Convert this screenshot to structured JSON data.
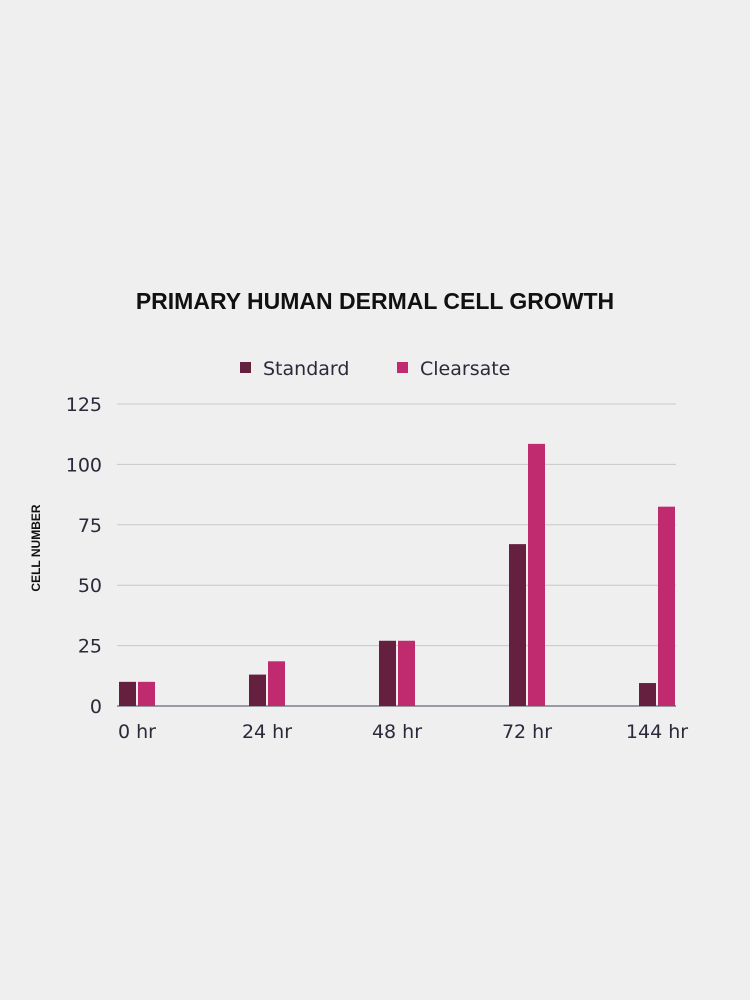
{
  "chart_data": {
    "type": "bar",
    "title": "PRIMARY HUMAN DERMAL CELL GROWTH",
    "xlabel": "",
    "ylabel": "CELL NUMBER",
    "categories": [
      "0 hr",
      "24 hr",
      "48 hr",
      "72 hr",
      "144 hr"
    ],
    "series": [
      {
        "name": "Standard",
        "color": "#65203f",
        "values": [
          10,
          13,
          27,
          67,
          9.5
        ]
      },
      {
        "name": "Clearsate",
        "color": "#c02b6f",
        "values": [
          10,
          18.5,
          27,
          108.5,
          82.5
        ]
      }
    ],
    "ylim": [
      0,
      125
    ],
    "yticks": [
      0,
      25,
      50,
      75,
      100,
      125
    ],
    "grid": true,
    "legend": "top-center"
  }
}
